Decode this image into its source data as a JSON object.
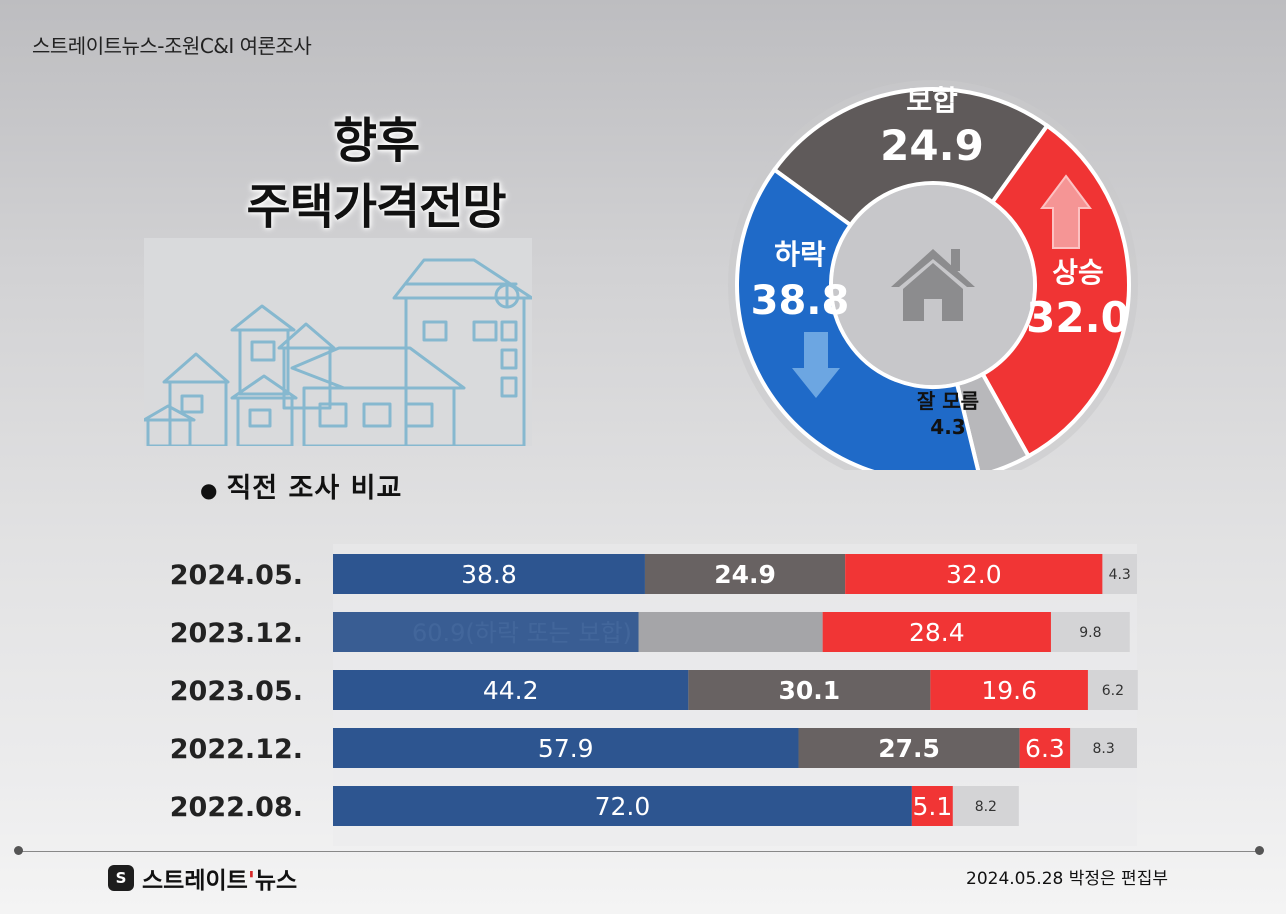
{
  "source": "스트레이트뉴스-조원C&I 여론조사",
  "title_line1": "향후",
  "title_line2": "주택가격전망",
  "section_title": "직전 조사 비교",
  "footer": "2024.05.28 박정은 편집부",
  "logo": {
    "mark": "S",
    "text_main": "스트레이트",
    "text_accent": "'",
    "text_end": "뉴스"
  },
  "colors": {
    "down": "#1f6ac8",
    "hold": "#5f5a5a",
    "up": "#f03434",
    "unknown": "#b8b8bb",
    "bar_down": "#2d5590",
    "bar_hold": "#686262",
    "bar_up": "#f13535",
    "bar_unknown": "#d4d4d6"
  },
  "chart_data": [
    {
      "type": "pie",
      "title": "향후 주택가격전망",
      "categories": [
        "보합",
        "상승",
        "잘 모름",
        "하락"
      ],
      "values": [
        24.9,
        32.0,
        4.3,
        38.8
      ],
      "labels": [
        "24.9",
        "32.0",
        "4.3",
        "38.8"
      ]
    },
    {
      "type": "bar",
      "title": "직전 조사 비교",
      "stacked": true,
      "orientation": "horizontal",
      "categories": [
        "2024.05.",
        "2023.12.",
        "2023.05.",
        "2022.12.",
        "2022.08."
      ],
      "series": [
        {
          "name": "하락",
          "values": [
            38.8,
            null,
            44.2,
            57.9,
            72.0
          ],
          "labels": [
            "38.8",
            "",
            "44.2",
            "57.9",
            "72.0"
          ]
        },
        {
          "name": "하락 또는 보합",
          "values": [
            null,
            60.9,
            null,
            null,
            null
          ],
          "labels": [
            "",
            "60.9(하락 또는 보합)",
            "",
            "",
            ""
          ]
        },
        {
          "name": "보합",
          "values": [
            24.9,
            null,
            30.1,
            27.5,
            null
          ],
          "labels": [
            "24.9",
            "",
            "30.1",
            "27.5",
            ""
          ]
        },
        {
          "name": "상승",
          "values": [
            32.0,
            28.4,
            19.6,
            6.3,
            5.1
          ],
          "labels": [
            "32.0",
            "28.4",
            "19.6",
            "6.3",
            "5.1"
          ]
        },
        {
          "name": "잘 모름",
          "values": [
            4.3,
            9.8,
            6.2,
            8.3,
            8.2
          ],
          "labels": [
            "4.3",
            "9.8",
            "6.2",
            "8.3",
            "8.2"
          ]
        }
      ]
    }
  ]
}
